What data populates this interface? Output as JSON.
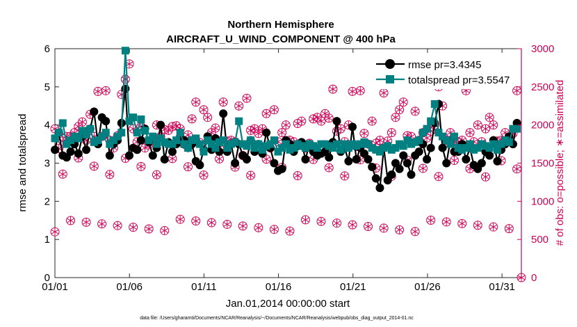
{
  "chart_data": {
    "type": "line",
    "title_line1": "Northern Hemisphere",
    "title_line2": "AIRCRAFT_U_WIND_COMPONENT @ 400 hPa",
    "xlabel": "Jan.01,2014 00:00:00 start",
    "ylabel_left": "rmse and totalspread",
    "ylabel_right": "# of obs: o=possible; ∗=assimilated",
    "footer": "data file: /Users/gharamti/Documents/NCAR/Reanalysis/~/Documents/NCAR/Reanalysis/webpub/obs_diag_output_2014-01.nc",
    "xlim": [
      1,
      32.3
    ],
    "ylim_left": [
      0,
      6
    ],
    "ylim_right": [
      0,
      3000
    ],
    "x_ticks": [
      {
        "value": 1,
        "label": "01/01"
      },
      {
        "value": 6,
        "label": "01/06"
      },
      {
        "value": 11,
        "label": "01/11"
      },
      {
        "value": 16,
        "label": "01/16"
      },
      {
        "value": 21,
        "label": "01/21"
      },
      {
        "value": 26,
        "label": "01/26"
      },
      {
        "value": 31,
        "label": "01/31"
      }
    ],
    "y_ticks_left": [
      "0",
      "1",
      "2",
      "3",
      "4",
      "5",
      "6"
    ],
    "y_ticks_right": [
      "0",
      "500",
      "1000",
      "1500",
      "2000",
      "2500",
      "3000"
    ],
    "colors": {
      "rmse": "#000000",
      "spread": "#008080",
      "obs": "#cc0055",
      "axis": "#262626"
    },
    "series": [
      {
        "name": "rmse",
        "legend": "rmse pr=3.4345",
        "values": [
          3.35,
          3.8,
          3.2,
          3.15,
          3.3,
          3.5,
          3.25,
          3.7,
          3.35,
          3.9,
          4.35,
          3.5,
          4.2,
          4.1,
          3.2,
          3.5,
          3.6,
          4.05,
          4.95,
          3.2,
          3.4,
          3.35,
          3.6,
          3.9,
          3.55,
          3.2,
          3.4,
          4.0,
          3.1,
          3.55,
          3.3,
          3.5,
          3.7,
          3.6,
          3.4,
          3.5,
          3.05,
          2.95,
          3.35,
          3.7,
          3.35,
          3.65,
          3.3,
          4.3,
          3.3,
          3.5,
          3.0,
          3.5,
          3.2,
          3.1,
          3.6,
          3.3,
          3.5,
          3.25,
          3.8,
          3.4,
          3.0,
          2.8,
          2.85,
          3.6,
          3.5,
          3.3,
          3.45,
          3.55,
          3.1,
          3.5,
          3.3,
          3.2,
          3.25,
          3.3,
          3.15,
          3.55,
          4.1,
          3.3,
          3.4,
          3.05,
          3.95,
          3.1,
          3.4,
          3.25,
          3.1,
          2.9,
          2.6,
          2.35,
          3.4,
          2.55,
          2.7,
          3.0,
          2.85,
          3.2,
          3.0,
          2.7,
          3.2,
          3.3,
          3.5,
          3.1,
          3.4,
          4.05,
          4.55,
          3.4,
          3.0,
          3.6,
          3.3,
          3.3,
          3.5,
          3.1,
          3.4,
          2.95,
          2.85,
          3.0,
          3.3,
          3.2,
          3.6,
          3.05,
          3.35,
          3.5,
          3.7,
          3.5,
          4.05
        ]
      },
      {
        "name": "totalspread",
        "legend": "totalspread pr=3.5547",
        "values": [
          3.65,
          3.8,
          4.05,
          3.5,
          3.6,
          3.7,
          3.65,
          3.85,
          3.75,
          3.9,
          3.55,
          3.6,
          3.7,
          3.8,
          3.5,
          3.6,
          3.7,
          3.8,
          5.95,
          4.1,
          4.2,
          3.8,
          4.15,
          3.85,
          3.6,
          3.7,
          3.5,
          3.65,
          3.55,
          3.5,
          3.5,
          3.6,
          3.8,
          3.5,
          3.4,
          3.6,
          3.65,
          3.5,
          3.3,
          3.6,
          3.5,
          3.4,
          3.55,
          3.6,
          3.4,
          3.5,
          3.55,
          4.1,
          3.5,
          3.45,
          3.6,
          3.4,
          3.5,
          3.35,
          3.45,
          3.5,
          3.6,
          3.3,
          3.4,
          3.5,
          3.35,
          3.4,
          3.5,
          3.45,
          3.4,
          3.5,
          3.45,
          3.4,
          3.5,
          3.5,
          3.45,
          3.4,
          3.5,
          3.35,
          3.5,
          3.4,
          3.5,
          3.45,
          3.5,
          3.55,
          3.5,
          3.4,
          3.35,
          3.3,
          3.4,
          3.45,
          3.35,
          3.4,
          3.5,
          3.45,
          3.6,
          3.5,
          3.55,
          3.6,
          3.8,
          3.9,
          4.1,
          4.55,
          3.8,
          3.7,
          3.6,
          3.5,
          3.7,
          3.4,
          3.35,
          3.4,
          3.5,
          3.35,
          3.4,
          3.5,
          3.45,
          3.4,
          3.5,
          3.35,
          3.5,
          3.6,
          3.55,
          3.9,
          3.9
        ]
      }
    ],
    "obs_possible_upper": [
      1950,
      1690,
      1790,
      1850,
      1850,
      1900,
      1980,
      2040,
      1800,
      2140,
      1850,
      2440,
      1850,
      2450,
      1800,
      1700,
      1860,
      2400,
      2600,
      2800,
      1950,
      1780,
      1980,
      1700,
      1750,
      1800,
      2000,
      1850,
      1940,
      1930,
      1980,
      1990,
      1950,
      1750,
      1870,
      2080,
      2300,
      1770,
      2200,
      2100,
      1900,
      1960,
      1700,
      2300,
      1790,
      1800,
      1780,
      2250,
      1600,
      2350,
      1930,
      1950,
      1890,
      1950,
      2150,
      1700,
      2200,
      1780,
      1900,
      2000,
      1800,
      1780,
      2020,
      2050,
      1700,
      1760,
      2080,
      2100,
      2050,
      2150,
      2090,
      2470,
      1920,
      1950,
      1780,
      2000,
      2440,
      1720,
      2450,
      1890,
      1750,
      2050,
      1760,
      1800,
      2420,
      1790,
      1900,
      2100,
      2200,
      2300,
      1860,
      1850,
      2180,
      1800,
      1900,
      1830,
      1920,
      2000,
      2500,
      2250,
      1800,
      1900,
      1780,
      1780,
      1800,
      2450,
      1900,
      1780,
      2000,
      1780,
      1950,
      2100,
      2000,
      1790,
      1800,
      1900,
      1800,
      1890,
      2450
    ]
  }
}
